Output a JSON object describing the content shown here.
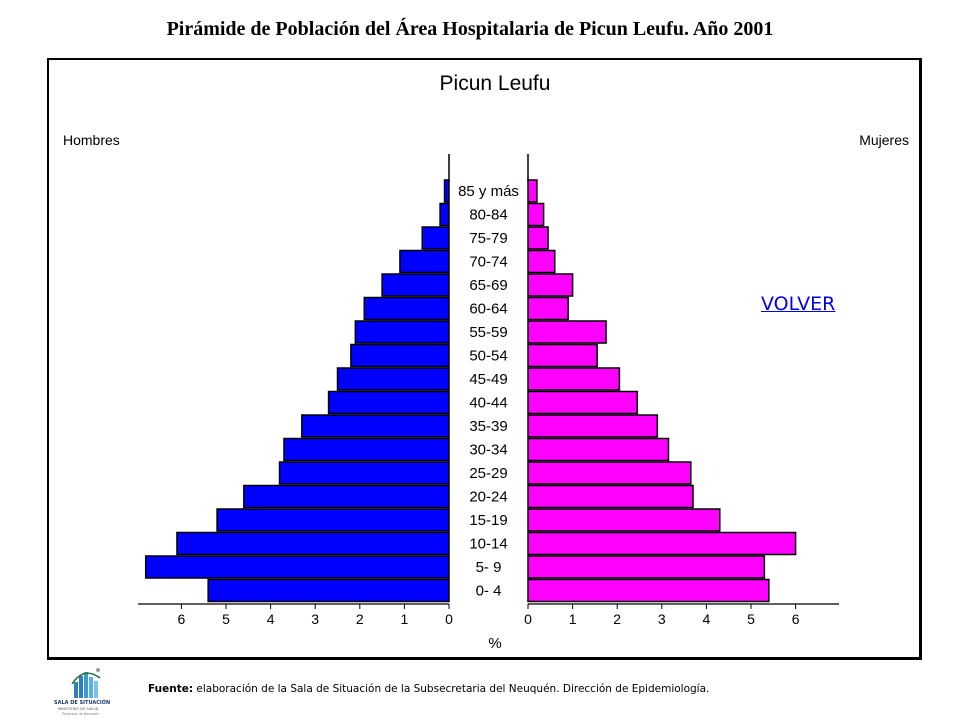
{
  "slide_title": "Pirámide de Población del Área Hospitalaria de Picun Leufu. Año 2001",
  "volver_link": "VOLVER",
  "source": {
    "label": "Fuente:",
    "text": "elaboración de la Sala de Situación de la Subsecretaria del Neuquén. Dirección de Epidemiología."
  },
  "logo": {
    "line1": "SALA DE SITUACIÓN",
    "line2": "MINISTERIO DE SALUD",
    "line3": "Provincia de Neuquén"
  },
  "colors": {
    "hombres": "#0000ff",
    "mujeres": "#ff00ff",
    "link": "#0000ee"
  },
  "chart_data": {
    "type": "bar",
    "orientation": "horizontal-pyramid",
    "title": "Picun Leufu",
    "left_label": "Hombres",
    "right_label": "Mujeres",
    "xlabel": "%",
    "xlim": [
      0,
      6.8
    ],
    "ticks": [
      "6",
      "5",
      "4",
      "3",
      "2",
      "1",
      "0",
      "0",
      "1",
      "2",
      "3",
      "4",
      "5",
      "6"
    ],
    "categories": [
      "85 y más",
      "80-84",
      "75-79",
      "70-74",
      "65-69",
      "60-64",
      "55-59",
      "50-54",
      "45-49",
      "40-44",
      "35-39",
      "30-34",
      "25-29",
      "20-24",
      "15-19",
      "10-14",
      "5- 9",
      "0- 4"
    ],
    "series": [
      {
        "name": "Hombres",
        "values": [
          0.1,
          0.2,
          0.6,
          1.1,
          1.5,
          1.9,
          2.1,
          2.2,
          2.5,
          2.7,
          3.3,
          3.7,
          3.8,
          4.6,
          5.2,
          6.1,
          6.8,
          5.4
        ]
      },
      {
        "name": "Mujeres",
        "values": [
          0.2,
          0.35,
          0.45,
          0.6,
          1.0,
          0.9,
          1.75,
          1.55,
          2.05,
          2.45,
          2.9,
          3.15,
          3.65,
          3.7,
          4.3,
          6.0,
          5.3,
          5.4
        ]
      }
    ]
  }
}
